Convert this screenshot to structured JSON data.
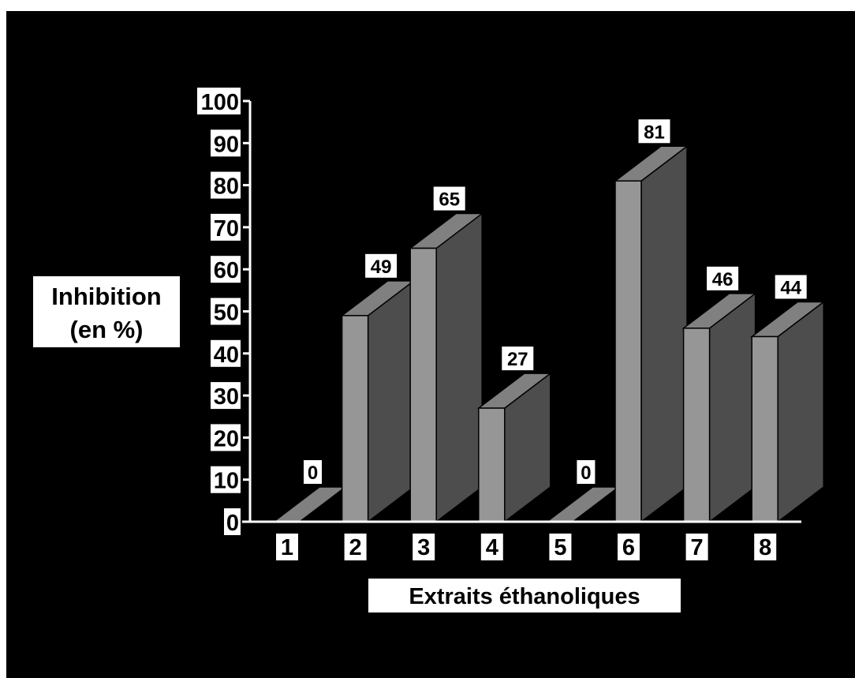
{
  "chart_data": {
    "type": "bar",
    "categories": [
      "1",
      "2",
      "3",
      "4",
      "5",
      "6",
      "7",
      "8"
    ],
    "values": [
      0,
      49,
      65,
      27,
      0,
      81,
      46,
      44
    ],
    "data_labels": [
      "0",
      "49",
      "65",
      "27",
      "0",
      "81",
      "46",
      "44"
    ],
    "title": "",
    "xlabel": "Extraits éthanoliques",
    "ylabel_line1": "Inhibition",
    "ylabel_line2": "(en %)",
    "ylim": [
      0,
      100
    ],
    "yticks": [
      "0",
      "10",
      "20",
      "30",
      "40",
      "50",
      "60",
      "70",
      "80",
      "90",
      "100"
    ],
    "grid": false,
    "legend": "none",
    "style": "3d-bar"
  },
  "colors": {
    "background": "#000000",
    "bar_front": "#969696",
    "bar_side": "#4d4d4d",
    "bar_top": "#808080",
    "label_box": "#ffffff",
    "axis": "#ffffff"
  }
}
